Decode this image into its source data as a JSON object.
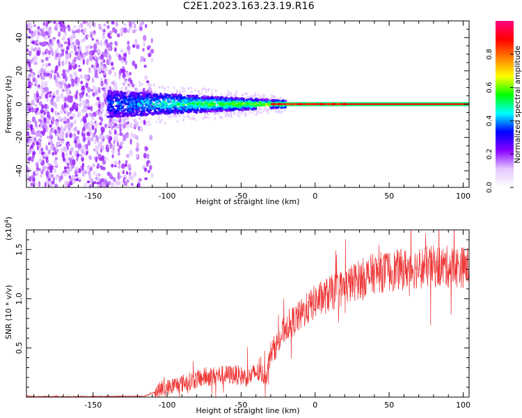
{
  "title": "C2E1.2023.163.23.19.R16",
  "chart_data": [
    {
      "type": "heatmap",
      "name": "spectrogram",
      "xlabel": "Height of straight line (km)",
      "ylabel": "Frequency (Hz)",
      "xlim": [
        -195,
        104
      ],
      "ylim": [
        -50,
        50
      ],
      "xticks": [
        -150,
        -100,
        -50,
        0,
        50,
        100
      ],
      "yticks": [
        -40,
        -20,
        0,
        20,
        40
      ],
      "colorbar": {
        "label": "Normalized spectral amplitude",
        "range": [
          0,
          1
        ],
        "ticks": [
          "0.0",
          "0.2",
          "0.4",
          "0.6",
          "0.8"
        ],
        "tick_values": [
          0.0,
          0.2,
          0.4,
          0.6,
          0.8
        ],
        "stops": [
          "#ffffff",
          "#e4c8ff",
          "#8800ff",
          "#0000ff",
          "#00ffff",
          "#00ff00",
          "#ffff00",
          "#ff8000",
          "#ff0000",
          "#ff0080"
        ]
      },
      "features": {
        "noise_region_x": [
          -195,
          -110
        ],
        "noise_band_x": [
          -140,
          -20
        ],
        "noise_band_halfwidth_hz": [
          8,
          2
        ],
        "signal_line_x": [
          -30,
          104
        ],
        "signal_line_freq": 0
      }
    },
    {
      "type": "line",
      "name": "snr",
      "xlabel": "Height of straight line (km)",
      "ylabel": "SNR (10 * v/v)",
      "yscale_label": "(x10",
      "yscale_exponent": "4",
      "yscale_suffix": ")",
      "xlim": [
        -195,
        104
      ],
      "ylim": [
        0,
        1.7
      ],
      "xticks": [
        -150,
        -100,
        -50,
        0,
        50,
        100
      ],
      "yticks": [
        0.5,
        1.0,
        1.5
      ],
      "ytick_labels": [
        "0.5",
        "1.0",
        "1.5"
      ],
      "color": "#ee3333",
      "profile": [
        [
          -195,
          0.005
        ],
        [
          -150,
          0.005
        ],
        [
          -115,
          0.01
        ],
        [
          -105,
          0.07
        ],
        [
          -95,
          0.12
        ],
        [
          -85,
          0.16
        ],
        [
          -75,
          0.2
        ],
        [
          -65,
          0.22
        ],
        [
          -55,
          0.23
        ],
        [
          -45,
          0.2
        ],
        [
          -40,
          0.25
        ],
        [
          -33,
          0.22
        ],
        [
          -30,
          0.45
        ],
        [
          -25,
          0.55
        ],
        [
          -20,
          0.72
        ],
        [
          -12,
          0.8
        ],
        [
          -5,
          0.9
        ],
        [
          0,
          0.97
        ],
        [
          10,
          1.05
        ],
        [
          20,
          1.12
        ],
        [
          30,
          1.2
        ],
        [
          40,
          1.26
        ],
        [
          60,
          1.3
        ],
        [
          80,
          1.33
        ],
        [
          104,
          1.32
        ]
      ],
      "noise_amplitude": 0.13
    }
  ]
}
